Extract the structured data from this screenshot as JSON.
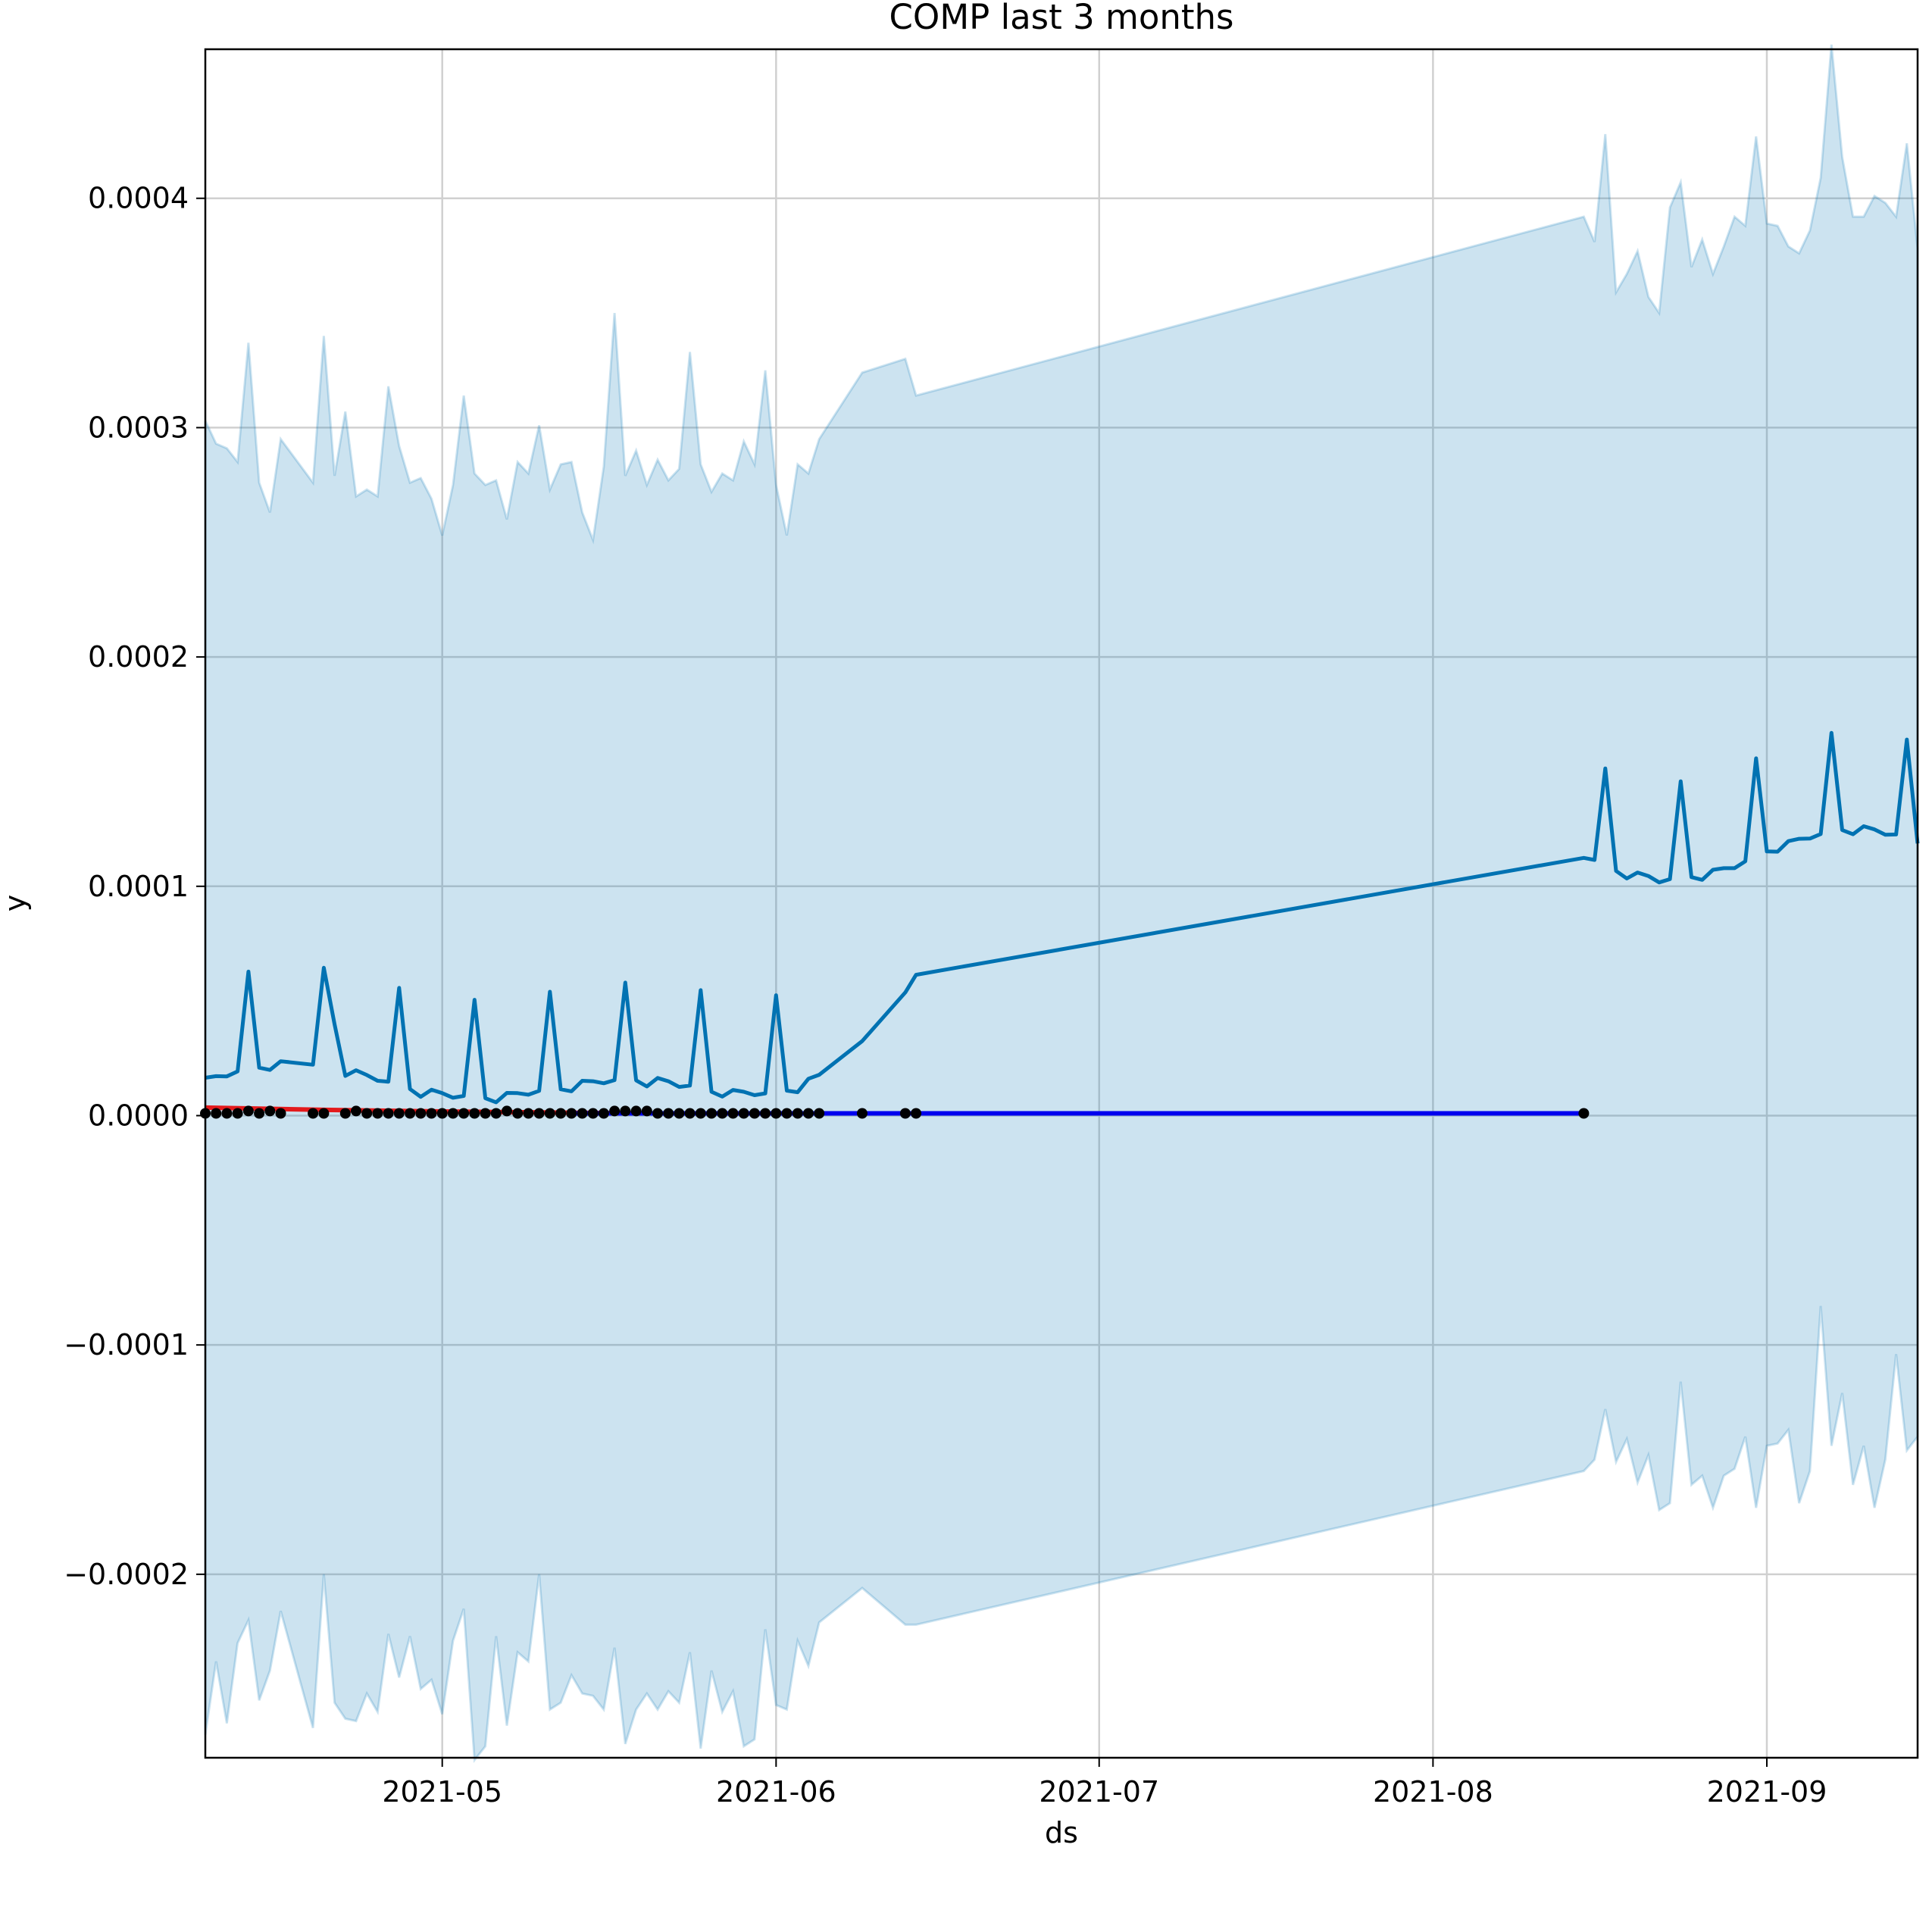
{
  "chart_data": {
    "type": "line",
    "title": "COMP last 3 months",
    "xlabel": "ds",
    "ylabel": "y",
    "xlim": [
      "2021-04-09",
      "2021-09-15"
    ],
    "ylim": [
      -0.00028,
      0.000465
    ],
    "grid": true,
    "x_ticks": [
      "2021-05-01",
      "2021-06-01",
      "2021-07-01",
      "2021-08-01",
      "2021-09-01"
    ],
    "x_tick_labels": [
      "2021-05",
      "2021-06",
      "2021-07",
      "2021-08",
      "2021-09"
    ],
    "y_ticks": [
      -0.0002,
      -0.0001,
      0,
      0.0001,
      0.0002,
      0.0003,
      0.0004
    ],
    "y_tick_labels": [
      "−0.0002",
      "−0.0001",
      "0.0000",
      "0.0001",
      "0.0002",
      "0.0003",
      "0.0004"
    ],
    "colors": {
      "forecast_line": "#0072b2",
      "uncertainty_band": "#0072b2",
      "observed_points": "#000000",
      "red_series": "#e31a1c",
      "blue_series": "#0000ee",
      "grid": "#d0d0d0"
    },
    "forecast": {
      "x": [
        "2021-04-09",
        "2021-04-10",
        "2021-04-11",
        "2021-04-12",
        "2021-04-13",
        "2021-04-14",
        "2021-04-15",
        "2021-04-16",
        "2021-04-19",
        "2021-04-20",
        "2021-04-21",
        "2021-04-22",
        "2021-04-23",
        "2021-04-24",
        "2021-04-25",
        "2021-04-26",
        "2021-04-27",
        "2021-04-28",
        "2021-04-29",
        "2021-04-30",
        "2021-05-01",
        "2021-05-02",
        "2021-05-03",
        "2021-05-04",
        "2021-05-05",
        "2021-05-06",
        "2021-05-07",
        "2021-05-08",
        "2021-05-09",
        "2021-05-10",
        "2021-05-11",
        "2021-05-12",
        "2021-05-13",
        "2021-05-14",
        "2021-05-15",
        "2021-05-16",
        "2021-05-17",
        "2021-05-18",
        "2021-05-19",
        "2021-05-20",
        "2021-05-21",
        "2021-05-22",
        "2021-05-23",
        "2021-05-24",
        "2021-05-25",
        "2021-05-26",
        "2021-05-27",
        "2021-05-28",
        "2021-05-29",
        "2021-05-30",
        "2021-05-31",
        "2021-06-01",
        "2021-06-02",
        "2021-06-03",
        "2021-06-04",
        "2021-06-05",
        "2021-06-09",
        "2021-06-13",
        "2021-06-14",
        "2021-08-15",
        "2021-08-16",
        "2021-08-17",
        "2021-08-18",
        "2021-08-19",
        "2021-08-20",
        "2021-08-21",
        "2021-08-22",
        "2021-08-23",
        "2021-08-24",
        "2021-08-25",
        "2021-08-26",
        "2021-08-27",
        "2021-08-28",
        "2021-08-29",
        "2021-08-30",
        "2021-08-31",
        "2021-09-01",
        "2021-09-02",
        "2021-09-03",
        "2021-09-04",
        "2021-09-05",
        "2021-09-06",
        "2021-09-07",
        "2021-09-08",
        "2021-09-09",
        "2021-09-10",
        "2021-09-11",
        "2021-09-12",
        "2021-09-13",
        "2021-09-14",
        "2021-09-15"
      ],
      "yhat": [
        1.65e-05,
        1.72e-05,
        1.71e-05,
        1.93e-05,
        6.28e-05,
        2.09e-05,
        1.99e-05,
        2.37e-05,
        2.22e-05,
        6.45e-05,
        3.98e-05,
        1.73e-05,
        1.98e-05,
        1.77e-05,
        1.52e-05,
        1.48e-05,
        5.57e-05,
        1.16e-05,
        8.2e-06,
        1.13e-05,
        9.8e-06,
        7.8e-06,
        8.6e-06,
        5.05e-05,
        7.6e-06,
        5.8e-06,
        9.9e-06,
        9.8e-06,
        9.1e-06,
        1.08e-05,
        5.4e-05,
        1.15e-05,
        1.06e-05,
        1.52e-05,
        1.5e-05,
        1.41e-05,
        1.55e-05,
        5.8e-05,
        1.54e-05,
        1.27e-05,
        1.64e-05,
        1.5e-05,
        1.25e-05,
        1.31e-05,
        5.47e-05,
        1.04e-05,
        8.3e-06,
        1.12e-05,
        1.04e-05,
        8.9e-06,
        9.7e-06,
        5.25e-05,
        1.09e-05,
        1.02e-05,
        1.61e-05,
        1.78e-05,
        3.25e-05,
        5.37e-05,
        6.14e-05,
        0.0001124,
        0.0001115,
        0.0001514,
        0.0001067,
        0.0001034,
        0.000106,
        0.0001045,
        0.0001017,
        0.0001031,
        0.0001458,
        0.000104,
        0.0001028,
        0.0001072,
        0.0001079,
        0.0001079,
        0.0001109,
        0.0001558,
        0.0001152,
        0.0001151,
        0.0001197,
        0.0001207,
        0.0001208,
        0.0001228,
        0.0001669,
        0.0001245,
        0.0001227,
        0.0001262,
        0.0001248,
        0.0001225,
        0.0001226,
        0.000164,
        0.0001187
      ],
      "yhat_upper": [
        0.000303,
        0.000293,
        0.000291,
        0.000285,
        0.000337,
        0.000276,
        0.000263,
        0.000295,
        0.000276,
        0.00034,
        0.000279,
        0.000307,
        0.00027,
        0.000273,
        0.00027,
        0.000318,
        0.000292,
        0.000276,
        0.000278,
        0.000269,
        0.000253,
        0.000275,
        0.000314,
        0.00028,
        0.000275,
        0.000277,
        0.00026,
        0.000285,
        0.00028,
        0.000301,
        0.000273,
        0.000284,
        0.000285,
        0.000263,
        0.000251,
        0.000283,
        0.00035,
        0.000279,
        0.00029,
        0.000275,
        0.000286,
        0.000277,
        0.000282,
        0.000333,
        0.000284,
        0.000272,
        0.00028,
        0.000277,
        0.000294,
        0.000284,
        0.000325,
        0.000275,
        0.000253,
        0.000284,
        0.00028,
        0.000295,
        0.000324,
        0.00033,
        0.000314,
        0.000392,
        0.000381,
        0.000428,
        0.000359,
        0.000367,
        0.000377,
        0.000357,
        0.00035,
        0.000396,
        0.000407,
        0.00037,
        0.000382,
        0.000367,
        0.000379,
        0.000392,
        0.000388,
        0.000427,
        0.000389,
        0.000388,
        0.000379,
        0.000376,
        0.000386,
        0.000409,
        0.000467,
        0.000418,
        0.000392,
        0.000392,
        0.000401,
        0.000398,
        0.000392,
        0.000424,
        0.000378
      ],
      "yhat_lower": [
        -0.00027,
        -0.000238,
        -0.000265,
        -0.00023,
        -0.00022,
        -0.000255,
        -0.000242,
        -0.000216,
        -0.000267,
        -0.0002,
        -0.000256,
        -0.000263,
        -0.000264,
        -0.000252,
        -0.00026,
        -0.000226,
        -0.000245,
        -0.000227,
        -0.00025,
        -0.000246,
        -0.000261,
        -0.000229,
        -0.000215,
        -0.000281,
        -0.000275,
        -0.000227,
        -0.000266,
        -0.000234,
        -0.000238,
        -0.0002,
        -0.000259,
        -0.000256,
        -0.000244,
        -0.000252,
        -0.000253,
        -0.000259,
        -0.000232,
        -0.000274,
        -0.000259,
        -0.000252,
        -0.000259,
        -0.000251,
        -0.000256,
        -0.000234,
        -0.000276,
        -0.000242,
        -0.00026,
        -0.000251,
        -0.000275,
        -0.000272,
        -0.000224,
        -0.000257,
        -0.000259,
        -0.000229,
        -0.00024,
        -0.000221,
        -0.000206,
        -0.000222,
        -0.000222,
        -0.000155,
        -0.00015,
        -0.000128,
        -0.000151,
        -0.000141,
        -0.00016,
        -0.000148,
        -0.000172,
        -0.000169,
        -0.000116,
        -0.000161,
        -0.000157,
        -0.000171,
        -0.000157,
        -0.000154,
        -0.00014,
        -0.000171,
        -0.000144,
        -0.000143,
        -0.000137,
        -0.000169,
        -0.000155,
        -8.3e-05,
        -0.000144,
        -0.000121,
        -0.000161,
        -0.000144,
        -0.000171,
        -0.00015,
        -0.000104,
        -0.000146,
        -0.00014
      ]
    },
    "observed": {
      "x": [
        "2021-04-09",
        "2021-04-10",
        "2021-04-11",
        "2021-04-12",
        "2021-04-13",
        "2021-04-14",
        "2021-04-15",
        "2021-04-16",
        "2021-04-19",
        "2021-04-20",
        "2021-04-22",
        "2021-04-23",
        "2021-04-24",
        "2021-04-25",
        "2021-04-26",
        "2021-04-27",
        "2021-04-28",
        "2021-04-29",
        "2021-04-30",
        "2021-05-01",
        "2021-05-02",
        "2021-05-03",
        "2021-05-04",
        "2021-05-05",
        "2021-05-06",
        "2021-05-07",
        "2021-05-08",
        "2021-05-09",
        "2021-05-10",
        "2021-05-11",
        "2021-05-12",
        "2021-05-13",
        "2021-05-14",
        "2021-05-15",
        "2021-05-16",
        "2021-05-17",
        "2021-05-18",
        "2021-05-19",
        "2021-05-20",
        "2021-05-21",
        "2021-05-22",
        "2021-05-23",
        "2021-05-24",
        "2021-05-25",
        "2021-05-26",
        "2021-05-27",
        "2021-05-28",
        "2021-05-29",
        "2021-05-30",
        "2021-05-31",
        "2021-06-01",
        "2021-06-02",
        "2021-06-03",
        "2021-06-04",
        "2021-06-05",
        "2021-06-09",
        "2021-06-13",
        "2021-06-14",
        "2021-08-15"
      ],
      "y": [
        1e-06,
        1e-06,
        1e-06,
        1e-06,
        2e-06,
        1e-06,
        2e-06,
        1e-06,
        1e-06,
        1e-06,
        1e-06,
        2e-06,
        1e-06,
        1e-06,
        1e-06,
        1e-06,
        1e-06,
        1e-06,
        1e-06,
        1e-06,
        1e-06,
        1e-06,
        1e-06,
        1e-06,
        1e-06,
        2e-06,
        1e-06,
        1e-06,
        1e-06,
        1e-06,
        1e-06,
        1e-06,
        1e-06,
        1e-06,
        1e-06,
        2e-06,
        2e-06,
        2e-06,
        2e-06,
        1e-06,
        1e-06,
        1e-06,
        1e-06,
        1e-06,
        1e-06,
        1e-06,
        1e-06,
        1e-06,
        1e-06,
        1e-06,
        1e-06,
        1e-06,
        1e-06,
        1e-06,
        1e-06,
        1e-06,
        1e-06,
        1e-06,
        1e-06
      ]
    },
    "red_series": {
      "x": [
        "2021-04-09",
        "2021-04-20",
        "2021-05-01",
        "2021-05-12",
        "2021-05-20"
      ],
      "y": [
        3.5e-06,
        2.5e-06,
        1.8e-06,
        1.3e-06,
        1e-06
      ]
    },
    "blue_series": {
      "x": [
        "2021-05-13",
        "2021-05-20",
        "2021-06-01",
        "2021-08-15"
      ],
      "y": [
        1e-06,
        1e-06,
        1e-06,
        1e-06
      ]
    }
  }
}
